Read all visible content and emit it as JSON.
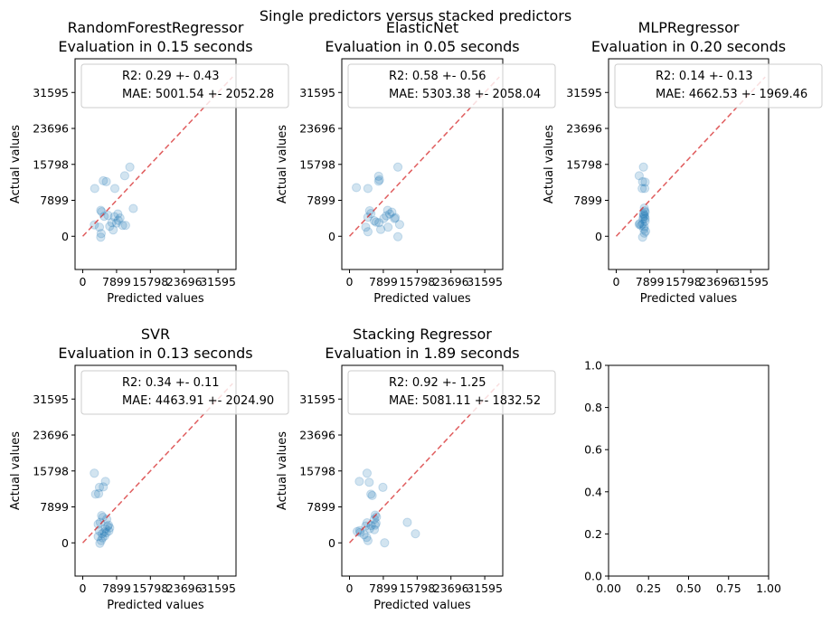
{
  "suptitle": "Single predictors versus stacked predictors",
  "colors": {
    "points": "#1f77b4",
    "identity_line": "#d62728",
    "axes": "#000000",
    "legend_border": "#cccccc"
  },
  "chart_data": [
    {
      "type": "scatter",
      "title_line1": "RandomForestRegressor",
      "title_line2": "Evaluation in 0.15 seconds",
      "xlabel": "Predicted values",
      "ylabel": "Actual values",
      "xlim": [
        -1800,
        35800
      ],
      "ylim": [
        -7300,
        39000
      ],
      "xticks": [
        0,
        7899,
        15798,
        23696,
        31595
      ],
      "yticks": [
        0,
        7899,
        15798,
        23696,
        31595
      ],
      "legend": [
        "R2: 0.29 +- 0.43",
        "MAE: 5001.54 +- 2052.28"
      ],
      "legend_position": "top-left",
      "identity_line": true,
      "points": [
        [
          2800,
          10500
        ],
        [
          4800,
          12200
        ],
        [
          5500,
          12000
        ],
        [
          7500,
          10500
        ],
        [
          9800,
          13300
        ],
        [
          11000,
          15200
        ],
        [
          2700,
          2500
        ],
        [
          4200,
          5700
        ],
        [
          4400,
          5400
        ],
        [
          3900,
          2000
        ],
        [
          4300,
          600
        ],
        [
          4200,
          -200
        ],
        [
          5000,
          4400
        ],
        [
          5900,
          4600
        ],
        [
          6800,
          3000
        ],
        [
          7400,
          4300
        ],
        [
          7900,
          2900
        ],
        [
          8200,
          4900
        ],
        [
          8300,
          3500
        ],
        [
          9300,
          2400
        ],
        [
          10000,
          2400
        ],
        [
          7100,
          1400
        ],
        [
          8700,
          4000
        ],
        [
          6300,
          2200
        ],
        [
          11800,
          6100
        ]
      ]
    },
    {
      "type": "scatter",
      "title_line1": "ElasticNet",
      "title_line2": "Evaluation in 0.05 seconds",
      "xlabel": "Predicted values",
      "ylabel": "Actual values",
      "xlim": [
        -1800,
        35800
      ],
      "ylim": [
        -7300,
        39000
      ],
      "xticks": [
        0,
        7899,
        15798,
        23696,
        31595
      ],
      "yticks": [
        0,
        7899,
        15798,
        23696,
        31595
      ],
      "legend": [
        "R2: 0.58 +- 0.56",
        "MAE: 5303.38 +- 2058.04"
      ],
      "legend_position": "top-left",
      "identity_line": true,
      "points": [
        [
          1600,
          10700
        ],
        [
          4300,
          10500
        ],
        [
          6800,
          12100
        ],
        [
          7000,
          12400
        ],
        [
          6800,
          13200
        ],
        [
          11300,
          15200
        ],
        [
          4300,
          4200
        ],
        [
          4700,
          5600
        ],
        [
          5000,
          5000
        ],
        [
          5800,
          3400
        ],
        [
          6200,
          3100
        ],
        [
          6900,
          3000
        ],
        [
          8000,
          3900
        ],
        [
          8900,
          5700
        ],
        [
          9400,
          4900
        ],
        [
          8600,
          4500
        ],
        [
          9900,
          5300
        ],
        [
          10500,
          3900
        ],
        [
          3800,
          2000
        ],
        [
          4300,
          1000
        ],
        [
          7300,
          1500
        ],
        [
          9000,
          2000
        ],
        [
          10700,
          4100
        ],
        [
          11700,
          2600
        ],
        [
          11300,
          -100
        ]
      ]
    },
    {
      "type": "scatter",
      "title_line1": "MLPRegressor",
      "title_line2": "Evaluation in 0.20 seconds",
      "xlabel": "Predicted values",
      "ylabel": "Actual values",
      "xlim": [
        -1800,
        35800
      ],
      "ylim": [
        -7300,
        39000
      ],
      "xticks": [
        0,
        7899,
        15798,
        23696,
        31595
      ],
      "yticks": [
        0,
        7899,
        15798,
        23696,
        31595
      ],
      "legend": [
        "R2: 0.14 +- 0.13",
        "MAE: 4662.53 +- 1969.46"
      ],
      "legend_position": "top-left",
      "identity_line": true,
      "points": [
        [
          5400,
          13300
        ],
        [
          6400,
          15200
        ],
        [
          6200,
          12000
        ],
        [
          6800,
          11900
        ],
        [
          6100,
          10500
        ],
        [
          6700,
          10500
        ],
        [
          6600,
          6200
        ],
        [
          6700,
          5600
        ],
        [
          6500,
          4700
        ],
        [
          6400,
          4300
        ],
        [
          6700,
          4400
        ],
        [
          6800,
          3300
        ],
        [
          6200,
          2700
        ],
        [
          5500,
          2800
        ],
        [
          5800,
          2400
        ],
        [
          6500,
          1600
        ],
        [
          6600,
          700
        ],
        [
          6200,
          -200
        ],
        [
          6900,
          1100
        ],
        [
          6800,
          5300
        ],
        [
          6300,
          3800
        ],
        [
          5400,
          2600
        ],
        [
          6800,
          3900
        ],
        [
          6600,
          2100
        ],
        [
          6400,
          5000
        ]
      ]
    },
    {
      "type": "scatter",
      "title_line1": "SVR",
      "title_line2": "Evaluation in 0.13 seconds",
      "xlabel": "Predicted values",
      "ylabel": "Actual values",
      "xlim": [
        -1800,
        35800
      ],
      "ylim": [
        -7300,
        39000
      ],
      "xticks": [
        0,
        7899,
        15798,
        23696,
        31595
      ],
      "yticks": [
        0,
        7899,
        15798,
        23696,
        31595
      ],
      "legend": [
        "R2: 0.34 +- 0.11",
        "MAE: 4463.91 +- 2024.90"
      ],
      "legend_position": "top-left",
      "identity_line": true,
      "points": [
        [
          2700,
          15300
        ],
        [
          5300,
          13500
        ],
        [
          3900,
          12200
        ],
        [
          4800,
          12300
        ],
        [
          3000,
          10700
        ],
        [
          3700,
          10800
        ],
        [
          4400,
          6000
        ],
        [
          4700,
          5600
        ],
        [
          5600,
          5200
        ],
        [
          4100,
          4500
        ],
        [
          3600,
          4100
        ],
        [
          6000,
          3900
        ],
        [
          6300,
          3300
        ],
        [
          5300,
          3100
        ],
        [
          3900,
          2600
        ],
        [
          5000,
          2400
        ],
        [
          5500,
          2200
        ],
        [
          5100,
          1500
        ],
        [
          4600,
          1100
        ],
        [
          4000,
          -100
        ],
        [
          4300,
          500
        ],
        [
          6100,
          2600
        ],
        [
          3600,
          1400
        ],
        [
          5800,
          3600
        ],
        [
          4500,
          2000
        ]
      ]
    },
    {
      "type": "scatter",
      "title_line1": "Stacking Regressor",
      "title_line2": "Evaluation in 1.89 seconds",
      "xlabel": "Predicted values",
      "ylabel": "Actual values",
      "xlim": [
        -1800,
        35800
      ],
      "ylim": [
        -7300,
        39000
      ],
      "xticks": [
        0,
        7899,
        15798,
        23696,
        31595
      ],
      "yticks": [
        0,
        7899,
        15798,
        23696,
        31595
      ],
      "legend": [
        "R2: 0.92 +- 1.25",
        "MAE: 5081.11 +- 1832.52"
      ],
      "legend_position": "top-left",
      "identity_line": true,
      "points": [
        [
          2300,
          13500
        ],
        [
          4100,
          15300
        ],
        [
          4600,
          13300
        ],
        [
          5300,
          10400
        ],
        [
          5000,
          10700
        ],
        [
          7800,
          12200
        ],
        [
          6000,
          6100
        ],
        [
          5800,
          5200
        ],
        [
          6300,
          5700
        ],
        [
          4100,
          4400
        ],
        [
          3800,
          3700
        ],
        [
          5100,
          3800
        ],
        [
          6000,
          3900
        ],
        [
          5800,
          2900
        ],
        [
          1800,
          2500
        ],
        [
          2500,
          2300
        ],
        [
          3400,
          1800
        ],
        [
          4000,
          1200
        ],
        [
          4300,
          500
        ],
        [
          2400,
          2700
        ],
        [
          8200,
          0
        ],
        [
          13500,
          4500
        ],
        [
          15400,
          2000
        ],
        [
          4700,
          3100
        ],
        [
          6200,
          4300
        ]
      ]
    },
    {
      "type": "scatter",
      "title_line1": "",
      "title_line2": "",
      "xlabel": "",
      "ylabel": "",
      "xlim": [
        0,
        1
      ],
      "ylim": [
        0,
        1
      ],
      "xticks": [
        "0.00",
        "0.25",
        "0.50",
        "0.75",
        "1.00"
      ],
      "yticks": [
        "0.0",
        "0.2",
        "0.4",
        "0.6",
        "0.8",
        "1.0"
      ],
      "legend": [],
      "identity_line": false,
      "points": []
    }
  ]
}
